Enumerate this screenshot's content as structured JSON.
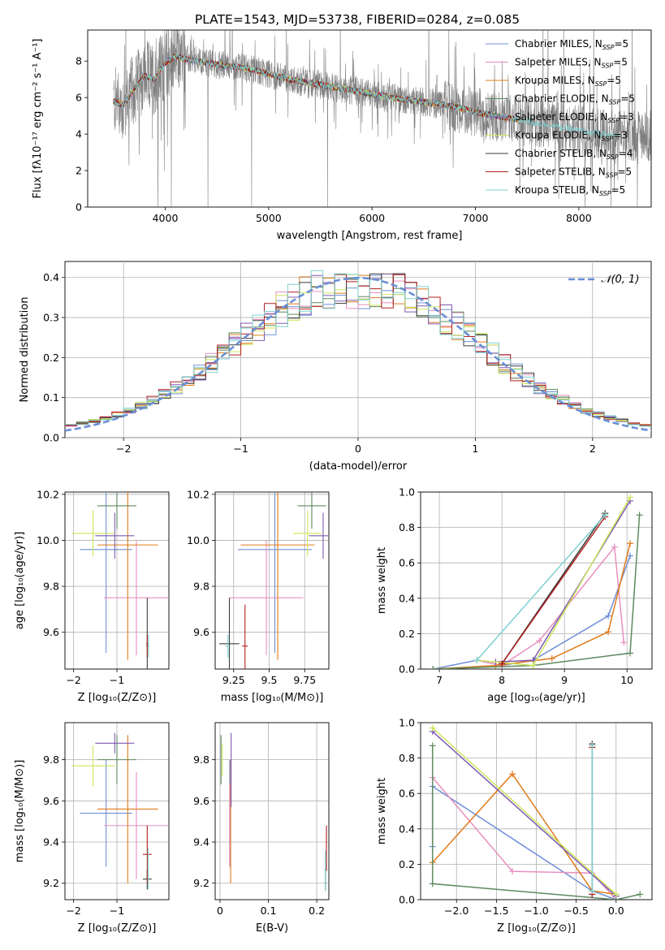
{
  "figure": {
    "title": "PLATE=1543, MJD=53738, FIBERID=0284, z=0.085"
  },
  "colors": [
    "#6f8fd8",
    "#e88fbf",
    "#e07b1a",
    "#5e8a5e",
    "#7e5ab0",
    "#cde65a",
    "#3b3b3b",
    "#b02020",
    "#7fd0d0"
  ],
  "chart_data": [
    {
      "id": "spectrum",
      "type": "line",
      "xlabel": "wavelength [Angstrom, rest frame]",
      "ylabel": "Flux [fλ10⁻¹⁷ erg cm⁻² s⁻¹ A⁻¹]",
      "xlim": [
        3250,
        8700
      ],
      "ylim": [
        0,
        9.7
      ],
      "xticks": [
        4000,
        5000,
        6000,
        7000,
        8000
      ],
      "yticks": [
        0,
        2,
        4,
        6,
        8
      ],
      "grid": false,
      "legend_placement": "top-right",
      "data_color": "#808080",
      "data_anchor": {
        "x": [
          3500,
          3600,
          3700,
          3800,
          3900,
          4000,
          4100,
          4200,
          4300,
          4500,
          4800,
          5000,
          5200,
          5500,
          5800,
          6000,
          6300,
          6600,
          6800,
          7000,
          7200,
          7400,
          7600,
          7800,
          8000,
          8200,
          8400
        ],
        "y": [
          5.8,
          5.6,
          6.5,
          7.2,
          7.0,
          7.9,
          8.3,
          8.1,
          8.0,
          7.8,
          7.6,
          7.3,
          7.0,
          6.7,
          6.4,
          6.2,
          5.9,
          5.7,
          5.5,
          5.2,
          5.0,
          4.8,
          4.6,
          4.4,
          4.2,
          4.0,
          3.9
        ]
      },
      "legend": [
        "Chabrier MILES, N_SSP=5",
        "Salpeter MILES, N_SSP=5",
        "Kroupa MILES, N_SSP=5",
        "Chabrier ELODIE, N_SSP=5",
        "Salpeter ELODIE, N_SSP=3",
        "Kroupa ELODIE, N_SSP=3",
        "Chabrier STELIB, N_SSP=4",
        "Salpeter STELIB, N_SSP=5",
        "Kroupa STELIB, N_SSP=5"
      ]
    },
    {
      "id": "residuals",
      "type": "bar",
      "xlabel": "(data-model)/error",
      "ylabel": "Normed distribution",
      "xlim": [
        -2.5,
        2.5
      ],
      "ylim": [
        0,
        0.44
      ],
      "xticks": [
        -2,
        -1,
        0,
        1,
        2
      ],
      "yticks": [
        0.0,
        0.1,
        0.2,
        0.3,
        0.4
      ],
      "grid": true,
      "legend_placement": "top-right",
      "legend": [
        "𝒩(0, 1)"
      ],
      "gauss_color": "#6a8fd6"
    },
    {
      "id": "age_vs_Z",
      "type": "scatter",
      "xlabel": "Z [log₁₀(Z/Z⊙)]",
      "ylabel": "age  [log₁₀(age/yr)]",
      "xlim": [
        -2.2,
        0.2
      ],
      "ylim": [
        9.44,
        10.21
      ],
      "xticks": [
        -2,
        -1
      ],
      "yticks": [
        9.6,
        9.8,
        10.0,
        10.2
      ],
      "points": [
        {
          "x": -1.25,
          "y": 9.96,
          "ex": 0.6,
          "ey": 0.45
        },
        {
          "x": -0.55,
          "y": 9.75,
          "ex": 0.75,
          "ey": 0.25
        },
        {
          "x": -0.75,
          "y": 9.98,
          "ex": 0.7,
          "ey": 0.5
        },
        {
          "x": -1.0,
          "y": 10.15,
          "ex": 0.45,
          "ey": 0.1
        },
        {
          "x": -1.05,
          "y": 10.02,
          "ex": 0.45,
          "ey": 0.1
        },
        {
          "x": -1.55,
          "y": 10.03,
          "ex": 0.5,
          "ey": 0.1
        },
        {
          "x": -0.3,
          "y": 9.55,
          "ex": 0.02,
          "ey": 0.2
        },
        {
          "x": -0.3,
          "y": 9.54,
          "ex": 0.02,
          "ey": 0.05
        },
        {
          "x": -0.27,
          "y": 9.54,
          "ex": 0.02,
          "ey": 0.05
        }
      ]
    },
    {
      "id": "age_vs_mass",
      "type": "scatter",
      "xlabel": "mass [log₁₀(M/M⊙)]",
      "ylabel": "",
      "xlim": [
        9.12,
        9.92
      ],
      "ylim": [
        9.44,
        10.21
      ],
      "xticks": [
        9.25,
        9.5,
        9.75
      ],
      "yticks": [
        9.6,
        9.8,
        10.0,
        10.2
      ],
      "points": [
        {
          "x": 9.54,
          "y": 9.96,
          "ex": 0.26,
          "ey": 0.45
        },
        {
          "x": 9.48,
          "y": 9.75,
          "ex": 0.26,
          "ey": 0.25
        },
        {
          "x": 9.56,
          "y": 9.98,
          "ex": 0.26,
          "ey": 0.5
        },
        {
          "x": 9.8,
          "y": 10.15,
          "ex": 0.1,
          "ey": 0.1
        },
        {
          "x": 9.88,
          "y": 10.02,
          "ex": 0.1,
          "ey": 0.1
        },
        {
          "x": 9.77,
          "y": 10.03,
          "ex": 0.1,
          "ey": 0.1
        },
        {
          "x": 9.22,
          "y": 9.55,
          "ex": 0.07,
          "ey": 0.2
        },
        {
          "x": 9.33,
          "y": 9.54,
          "ex": 0.02,
          "ey": 0.18
        },
        {
          "x": 9.21,
          "y": 9.54,
          "ex": 0.02,
          "ey": 0.05
        }
      ]
    },
    {
      "id": "weight_vs_age",
      "type": "line",
      "xlabel": "age  [log₁₀(age/yr)]",
      "ylabel": "mass weight",
      "xlim": [
        6.7,
        10.4
      ],
      "ylim": [
        0,
        1.0
      ],
      "xticks": [
        7,
        8,
        9,
        10
      ],
      "yticks": [
        0.0,
        0.2,
        0.4,
        0.6,
        0.8,
        1.0
      ],
      "grid": true,
      "series": [
        {
          "x": [
            6.9,
            7.6,
            8.0,
            8.5,
            9.7,
            10.05
          ],
          "y": [
            0.0,
            0.05,
            0.02,
            0.05,
            0.3,
            0.64
          ]
        },
        {
          "x": [
            7.6,
            8.0,
            8.6,
            9.8,
            9.95
          ],
          "y": [
            0.05,
            0.02,
            0.16,
            0.69,
            0.15
          ]
        },
        {
          "x": [
            6.9,
            7.9,
            8.8,
            9.7,
            10.05
          ],
          "y": [
            0.0,
            0.02,
            0.06,
            0.21,
            0.71
          ]
        },
        {
          "x": [
            6.9,
            8.5,
            10.05,
            10.2
          ],
          "y": [
            0.0,
            0.02,
            0.09,
            0.87
          ]
        },
        {
          "x": [
            7.9,
            8.5,
            10.05
          ],
          "y": [
            0.04,
            0.05,
            0.95
          ]
        },
        {
          "x": [
            7.6,
            8.5,
            10.05
          ],
          "y": [
            0.05,
            0.02,
            0.97
          ]
        },
        {
          "x": [
            8.0,
            9.65
          ],
          "y": [
            0.03,
            0.88
          ]
        },
        {
          "x": [
            8.0,
            9.65
          ],
          "y": [
            0.03,
            0.86
          ]
        },
        {
          "x": [
            7.6,
            9.65
          ],
          "y": [
            0.05,
            0.87
          ]
        }
      ]
    },
    {
      "id": "mass_vs_Z",
      "type": "scatter",
      "xlabel": "Z [log₁₀(Z/Z⊙)]",
      "ylabel": "mass [log₁₀(M/M⊙)]",
      "xlim": [
        -2.2,
        0.2
      ],
      "ylim": [
        9.12,
        9.98
      ],
      "xticks": [
        -2,
        -1
      ],
      "yticks": [
        9.2,
        9.4,
        9.6,
        9.8
      ],
      "points": [
        {
          "x": -1.25,
          "y": 9.54,
          "ex": 0.6,
          "ey": 0.26
        },
        {
          "x": -0.55,
          "y": 9.48,
          "ex": 0.75,
          "ey": 0.26
        },
        {
          "x": -0.75,
          "y": 9.56,
          "ex": 0.7,
          "ey": 0.36
        },
        {
          "x": -1.0,
          "y": 9.8,
          "ex": 0.45,
          "ey": 0.12
        },
        {
          "x": -1.05,
          "y": 9.88,
          "ex": 0.45,
          "ey": 0.05
        },
        {
          "x": -1.55,
          "y": 9.77,
          "ex": 0.5,
          "ey": 0.1
        },
        {
          "x": -0.3,
          "y": 9.22,
          "ex": 0.1,
          "ey": 0.05
        },
        {
          "x": -0.3,
          "y": 9.34,
          "ex": 0.1,
          "ey": 0.14
        },
        {
          "x": -0.28,
          "y": 9.27,
          "ex": 0.02,
          "ey": 0.1
        }
      ]
    },
    {
      "id": "mass_vs_EBV",
      "type": "scatter",
      "xlabel": "E(B-V)",
      "ylabel": "",
      "xlim": [
        -0.01,
        0.225
      ],
      "ylim": [
        9.12,
        9.98
      ],
      "xticks": [
        0.0,
        0.1,
        0.2
      ],
      "yticks": [
        9.2,
        9.4,
        9.6,
        9.8
      ],
      "points": [
        {
          "x": 0.02,
          "y": 9.54,
          "ex": 0,
          "ey": 0.26
        },
        {
          "x": 0.02,
          "y": 9.48,
          "ex": 0,
          "ey": 0.2
        },
        {
          "x": 0.022,
          "y": 9.5,
          "ex": 0,
          "ey": 0.3
        },
        {
          "x": 0.002,
          "y": 9.8,
          "ex": 0,
          "ey": 0.12
        },
        {
          "x": 0.023,
          "y": 9.75,
          "ex": 0,
          "ey": 0.18
        },
        {
          "x": 0.005,
          "y": 9.8,
          "ex": 0,
          "ey": 0.08
        },
        {
          "x": 0.218,
          "y": 9.22,
          "ex": 0,
          "ey": 0.05
        },
        {
          "x": 0.22,
          "y": 9.37,
          "ex": 0,
          "ey": 0.11
        },
        {
          "x": 0.218,
          "y": 9.26,
          "ex": 0,
          "ey": 0.1
        }
      ]
    },
    {
      "id": "weight_vs_Z",
      "type": "line",
      "xlabel": "Z [log₁₀(Z/Z⊙)]",
      "ylabel": "mass weight",
      "xlim": [
        -2.45,
        0.45
      ],
      "ylim": [
        0,
        1.0
      ],
      "xticks": [
        -2.0,
        -1.5,
        -1.0,
        -0.5,
        0.0
      ],
      "xtick_labels": [
        "−2.0",
        "−1.5",
        "−1.0",
        "−0.5",
        "0.0"
      ],
      "yticks": [
        0.0,
        0.2,
        0.4,
        0.6,
        0.8,
        1.0
      ],
      "grid": true,
      "series": [
        {
          "x": [
            -2.3,
            -2.3,
            -0.3,
            0.0
          ],
          "y": [
            0.3,
            0.64,
            0.05,
            0.0
          ]
        },
        {
          "x": [
            -2.3,
            -1.3,
            -0.3,
            0.0
          ],
          "y": [
            0.69,
            0.16,
            0.15,
            0.0
          ]
        },
        {
          "x": [
            -2.3,
            -1.3,
            -0.3,
            0.0
          ],
          "y": [
            0.21,
            0.71,
            0.05,
            0.03
          ]
        },
        {
          "x": [
            -2.3,
            -2.3,
            0.0,
            0.3
          ],
          "y": [
            0.87,
            0.09,
            0.0,
            0.03
          ]
        },
        {
          "x": [
            -2.3,
            0.0
          ],
          "y": [
            0.95,
            0.02
          ]
        },
        {
          "x": [
            -2.3,
            0.0
          ],
          "y": [
            0.97,
            0.03
          ]
        },
        {
          "x": [
            -0.3,
            -0.3
          ],
          "y": [
            0.03,
            0.88
          ]
        },
        {
          "x": [
            -0.3,
            -0.3
          ],
          "y": [
            0.03,
            0.86
          ]
        },
        {
          "x": [
            -0.3,
            -0.3
          ],
          "y": [
            0.05,
            0.87
          ]
        }
      ]
    }
  ]
}
